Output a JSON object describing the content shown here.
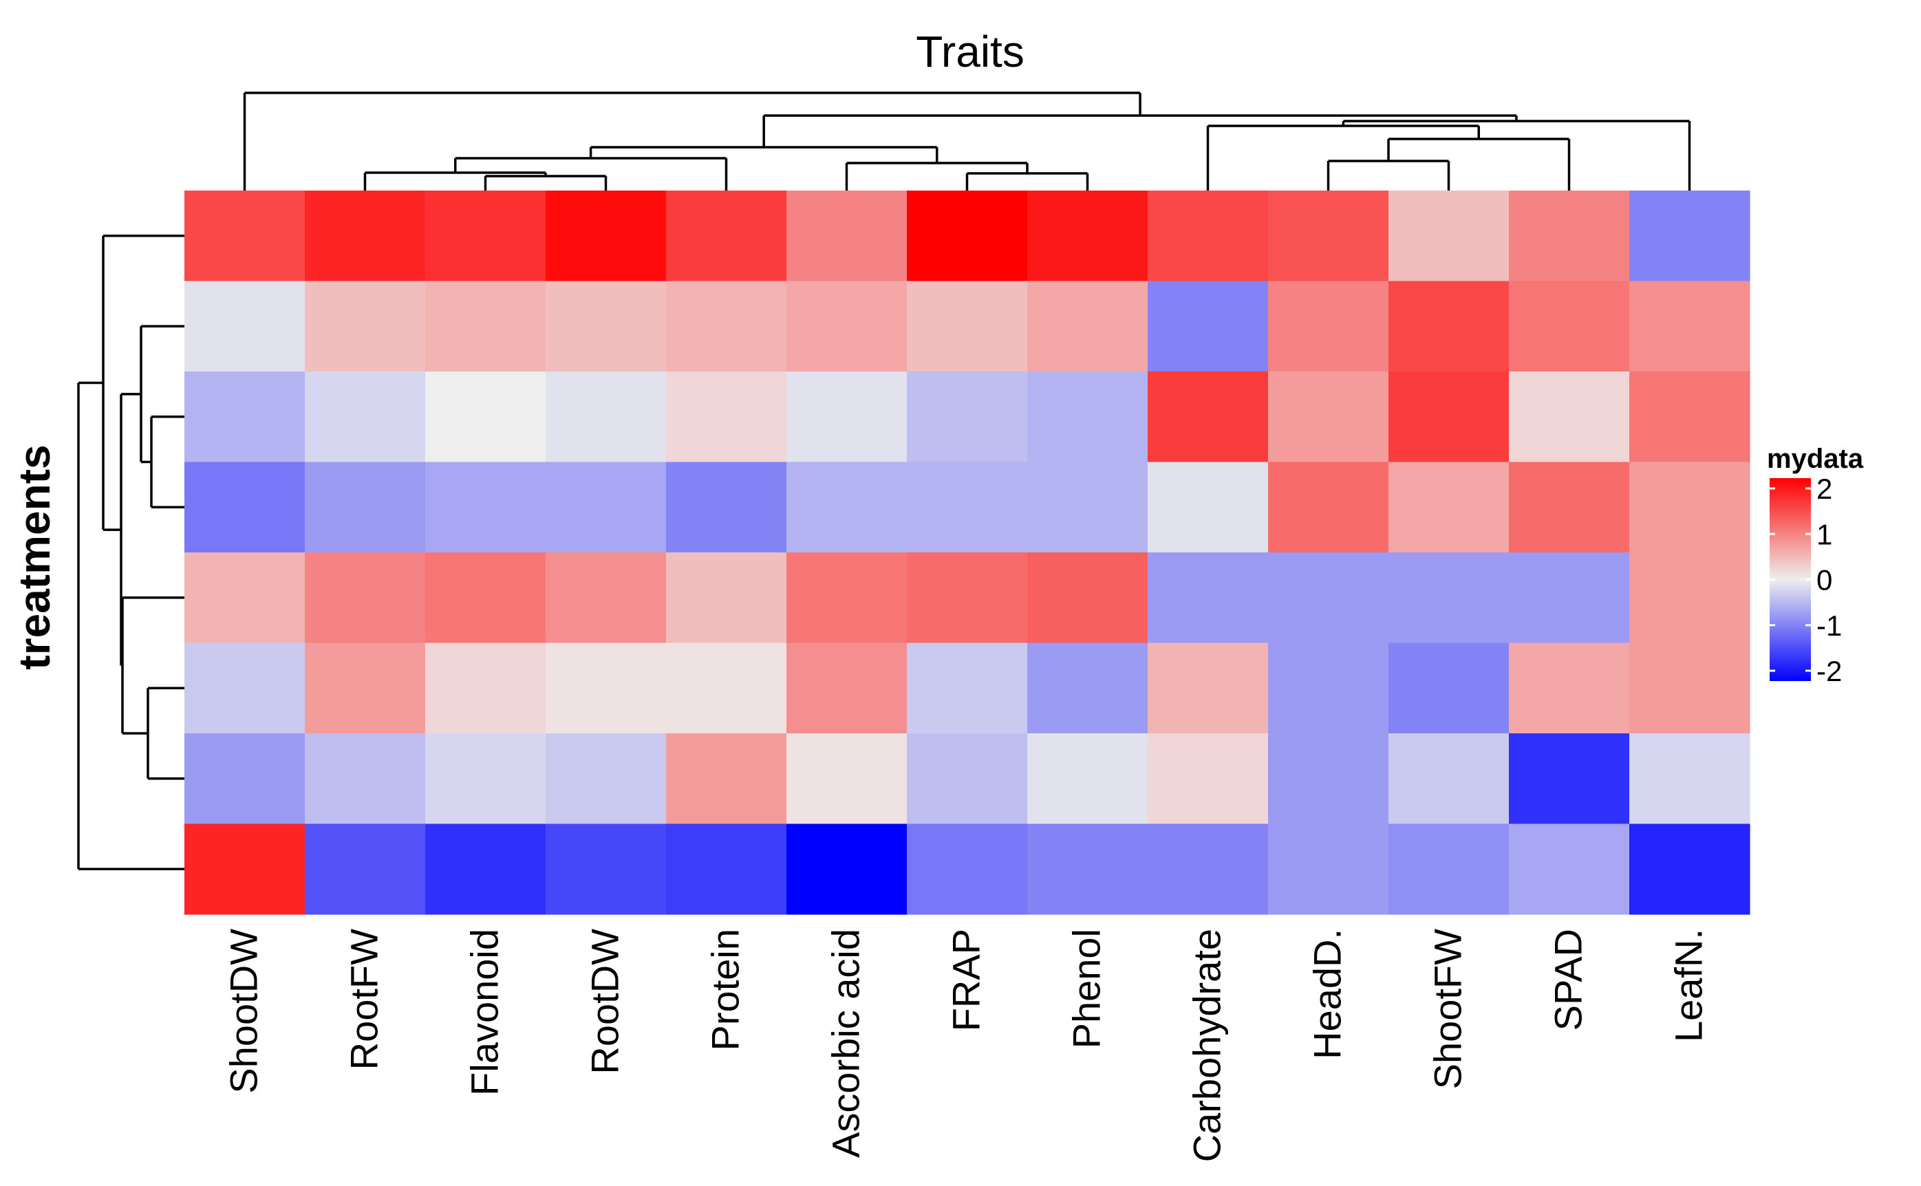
{
  "chart_data": {
    "type": "heatmap",
    "title": "Traits",
    "xlabel": "",
    "ylabel": "treatments",
    "columns": [
      "ShootDW",
      "RootFW",
      "Flavonoid",
      "RootDW",
      "Protein",
      "Ascorbic acid",
      "FRAP",
      "Phenol",
      "Carbohydrate",
      "HeadD.",
      "ShootFW",
      "SPAD",
      "LeafN."
    ],
    "values": [
      [
        1.4,
        1.7,
        1.6,
        1.9,
        1.5,
        0.9,
        2.0,
        1.8,
        1.4,
        1.3,
        0.4,
        0.9,
        -0.9
      ],
      [
        -0.1,
        0.4,
        0.5,
        0.4,
        0.5,
        0.6,
        0.4,
        0.6,
        -0.9,
        0.9,
        1.4,
        1.0,
        0.8
      ],
      [
        -0.5,
        -0.2,
        0.0,
        -0.1,
        0.2,
        -0.1,
        -0.4,
        -0.5,
        1.5,
        0.7,
        1.5,
        0.2,
        1.0
      ],
      [
        -1.0,
        -0.7,
        -0.6,
        -0.6,
        -0.9,
        -0.5,
        -0.5,
        -0.5,
        -0.1,
        1.1,
        0.6,
        1.1,
        0.7
      ],
      [
        0.5,
        0.9,
        1.0,
        0.8,
        0.4,
        1.0,
        1.1,
        1.2,
        -0.7,
        -0.7,
        -0.7,
        -0.7,
        0.7
      ],
      [
        -0.3,
        0.7,
        0.2,
        0.1,
        0.1,
        0.8,
        -0.3,
        -0.7,
        0.5,
        -0.7,
        -0.9,
        0.6,
        0.7
      ],
      [
        -0.7,
        -0.4,
        -0.2,
        -0.3,
        0.7,
        0.1,
        -0.4,
        -0.1,
        0.2,
        -0.7,
        -0.3,
        -1.6,
        -0.2
      ],
      [
        1.7,
        -1.3,
        -1.6,
        -1.4,
        -1.5,
        -2.0,
        -1.0,
        -0.9,
        -0.9,
        -0.7,
        -0.8,
        -0.6,
        -1.7
      ]
    ],
    "color_scale": {
      "low": "#0000FF",
      "mid": "#EEEEEE",
      "high": "#FF0000",
      "min": -2,
      "max": 2
    },
    "legend": {
      "title": "mydata",
      "ticks": [
        "2",
        "1",
        "0",
        "-1",
        "-2"
      ],
      "position": "right"
    },
    "column_dendrogram": true,
    "row_dendrogram": true
  }
}
